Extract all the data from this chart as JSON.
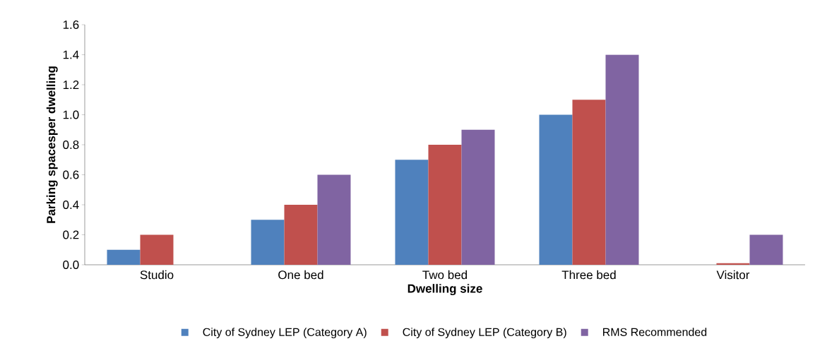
{
  "chart_data": {
    "type": "bar",
    "xlabel": "Dwelling size",
    "ylabel": "Parking spacesper dwelling",
    "categories": [
      "Studio",
      "One bed",
      "Two bed",
      "Three bed",
      "Visitor"
    ],
    "series": [
      {
        "name": "City of Sydney LEP (Category A)",
        "color": "#4f81bd",
        "values": [
          0.1,
          0.3,
          0.7,
          1.0,
          0
        ]
      },
      {
        "name": "City of Sydney LEP (Category B)",
        "color": "#c0504d",
        "values": [
          0.2,
          0.4,
          0.8,
          1.1,
          0.01
        ]
      },
      {
        "name": "RMS Recommended",
        "color": "#8064a2",
        "values": [
          0,
          0.6,
          0.9,
          1.4,
          0.2
        ]
      }
    ],
    "ylim": [
      0,
      1.6
    ],
    "yticks": [
      {
        "value": 0,
        "label": "0.0"
      },
      {
        "value": 0.2,
        "label": "0.2"
      },
      {
        "value": 0.4,
        "label": "0.4"
      },
      {
        "value": 0.6,
        "label": "0.6"
      },
      {
        "value": 0.8,
        "label": "0.8"
      },
      {
        "value": 1.0,
        "label": "1.0"
      },
      {
        "value": 1.2,
        "label": "1.2"
      },
      {
        "value": 1.4,
        "label": "1.4"
      },
      {
        "value": 1.6,
        "label": "1.6"
      }
    ],
    "legend": "bottom"
  }
}
